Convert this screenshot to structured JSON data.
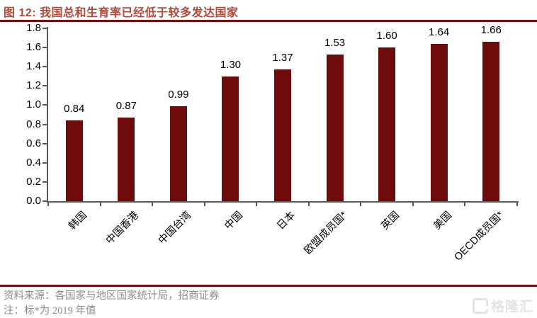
{
  "header": {
    "title": "图 12:  我国总和生育率已经低于较多发达国家"
  },
  "chart_data": {
    "type": "bar",
    "title": "我国总和生育率已经低于较多发达国家",
    "categories": [
      "韩国",
      "中国香港",
      "中国台湾",
      "中国",
      "日本",
      "欧盟成员国*",
      "英国",
      "美国",
      "OECD成员国*"
    ],
    "values": [
      0.84,
      0.87,
      0.99,
      1.3,
      1.37,
      1.53,
      1.6,
      1.64,
      1.66
    ],
    "value_labels": [
      "0.84",
      "0.87",
      "0.99",
      "1.30",
      "1.37",
      "1.53",
      "1.60",
      "1.64",
      "1.66"
    ],
    "xlabel": "",
    "ylabel": "",
    "ylim": [
      0,
      1.8
    ],
    "ytick_labels": [
      "0.0",
      "0.2",
      "0.4",
      "0.6",
      "0.8",
      "1.0",
      "1.2",
      "1.4",
      "1.6",
      "1.8"
    ],
    "grid": false,
    "legend": null,
    "bar_color": "#6e0c0c"
  },
  "footer": {
    "source": "资料来源：各国家与地区国家统计局，招商证券",
    "note": "注：标*为 2019 年值",
    "logo_text": "格隆汇"
  },
  "colors": {
    "title_text": "#b04a3a",
    "rule": "#701010",
    "bar": "#6e0c0c",
    "axis": "#595959",
    "footer_text": "#8c8c8c",
    "logo": "#e3e3e3"
  }
}
